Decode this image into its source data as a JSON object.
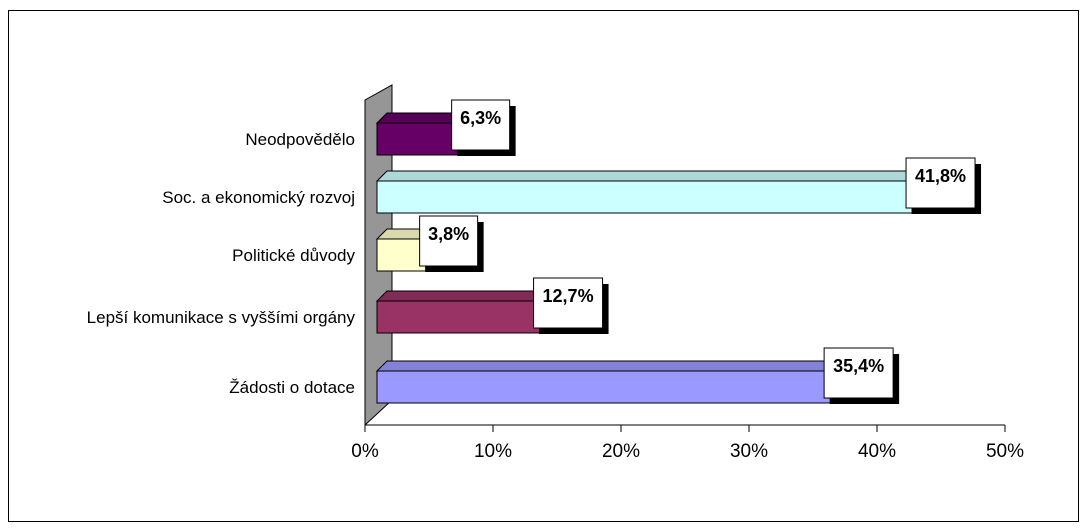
{
  "chart_data": {
    "type": "bar",
    "orientation": "horizontal",
    "title": "",
    "xlabel": "",
    "ylabel": "",
    "categories": [
      "Neodpovědělo",
      "Soc. a ekonomický rozvoj",
      "Politické důvody",
      "Lepší komunikace s vyššími orgány",
      "Žádosti o dotace"
    ],
    "values": [
      6.3,
      41.8,
      3.8,
      12.7,
      35.4
    ],
    "data_labels": [
      "6,3%",
      "41,8%",
      "3,8%",
      "12,7%",
      "35,4%"
    ],
    "xlim": [
      0,
      50
    ],
    "x_ticks": [
      0,
      10,
      20,
      30,
      40,
      50
    ],
    "x_tick_labels": [
      "0%",
      "10%",
      "20%",
      "30%",
      "40%",
      "50%"
    ],
    "grid": false,
    "legend": "none",
    "bar_colors": [
      "#660066",
      "#ccffff",
      "#ffffcc",
      "#993366",
      "#9999ff"
    ],
    "wall_color": "#969696"
  }
}
